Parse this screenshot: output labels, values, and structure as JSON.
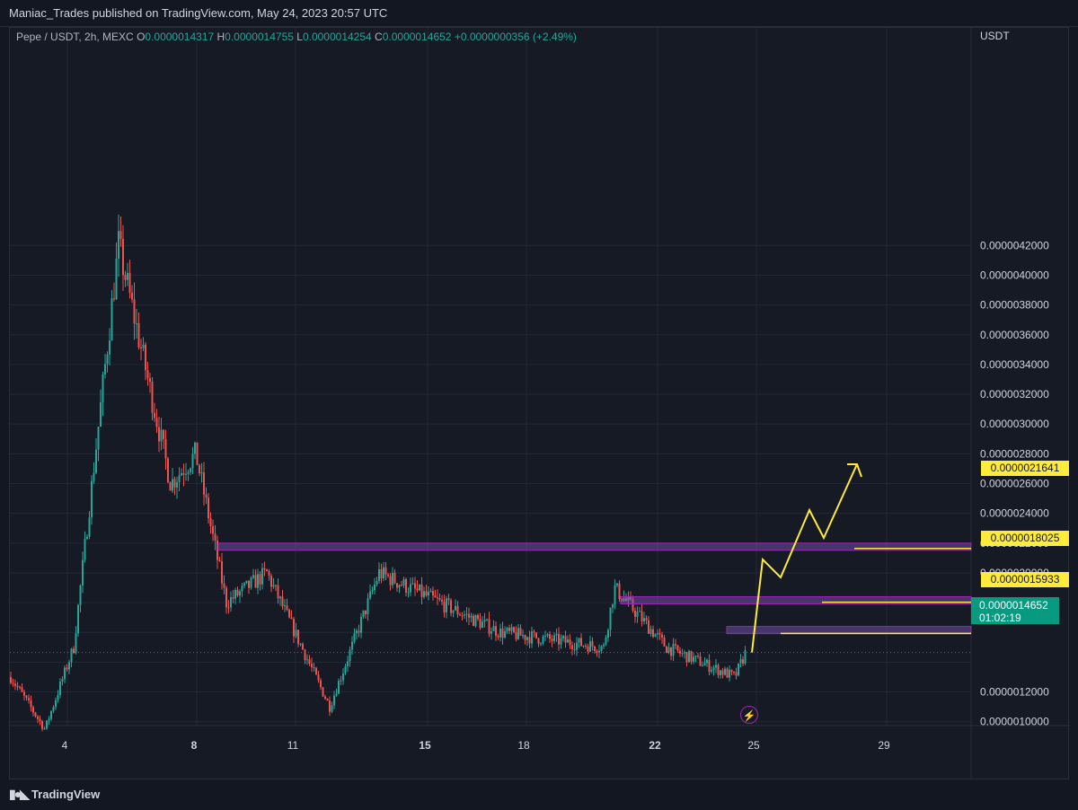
{
  "header": {
    "publish_line": "Maniac_Trades published on TradingView.com, May 24, 2023 20:57 UTC"
  },
  "legend": {
    "symbol": "Pepe / USDT, 2h, MEXC",
    "o_label": "O",
    "o": "0.0000014317",
    "h_label": "H",
    "h": "0.0000014755",
    "l_label": "L",
    "l": "0.0000014254",
    "c_label": "C",
    "c": "0.0000014652",
    "change": "+0.0000000356 (+2.49%)"
  },
  "price_axis": {
    "currency": "USDT",
    "ticks": [
      "0.0000042000",
      "0.0000040000",
      "0.0000038000",
      "0.0000036000",
      "0.0000034000",
      "0.0000032000",
      "0.0000030000",
      "0.0000028000",
      "0.0000026000",
      "0.0000024000",
      "0.0000022000",
      "0.0000020000",
      "0.0000012000",
      "0.0000010000"
    ]
  },
  "time_axis": {
    "ticks": [
      "4",
      "4",
      "8",
      "11",
      "15",
      "18",
      "22",
      "25",
      "29"
    ],
    "bold": [
      "8",
      "15",
      "22"
    ]
  },
  "price_tags": {
    "level_1": "0.0000021641",
    "level_2": "0.0000018025",
    "level_3": "0.0000015933",
    "last_price": "0.0000014652",
    "countdown": "01:02:19"
  },
  "footer": {
    "brand": "TradingView"
  },
  "colors": {
    "up": "#26a69a",
    "down": "#ef5350",
    "zone": "#7e57c2",
    "projection": "#ffeb3b",
    "last": "#089981"
  },
  "chart_data": {
    "type": "candlestick",
    "symbol": "Pepe / USDT",
    "interval": "2h",
    "exchange": "MEXC",
    "ylim": [
      8.7e-07,
      4.3e-06
    ],
    "key_path": [
      {
        "x": "4",
        "y": 1.3e-06
      },
      {
        "x": "4",
        "y": 9.5e-07
      },
      {
        "x": "5",
        "y": 1.5e-06
      },
      {
        "x": "6",
        "y": 4.2e-06
      },
      {
        "x": "7",
        "y": 2.6e-06
      },
      {
        "x": "8",
        "y": 2.8e-06
      },
      {
        "x": "9",
        "y": 1.8e-06
      },
      {
        "x": "10",
        "y": 2e-06
      },
      {
        "x": "12",
        "y": 1.1e-06
      },
      {
        "x": "13",
        "y": 2e-06
      },
      {
        "x": "16",
        "y": 1.6e-06
      },
      {
        "x": "19",
        "y": 1.5e-06
      },
      {
        "x": "20",
        "y": 1.9e-06
      },
      {
        "x": "23",
        "y": 1.5e-06
      },
      {
        "x": "24",
        "y": 1.3e-06
      },
      {
        "x": "24",
        "y": 1.4652e-06
      }
    ],
    "zones": [
      {
        "from": 2.1641e-06,
        "to": 2.2e-06
      },
      {
        "from": 1.8025e-06,
        "to": 1.84e-06
      },
      {
        "from": 1.5933e-06,
        "to": 1.64e-06
      }
    ],
    "projection_levels": [
      1.5933e-06,
      1.8025e-06,
      2.1641e-06
    ],
    "last_price": 1.4652e-06
  }
}
